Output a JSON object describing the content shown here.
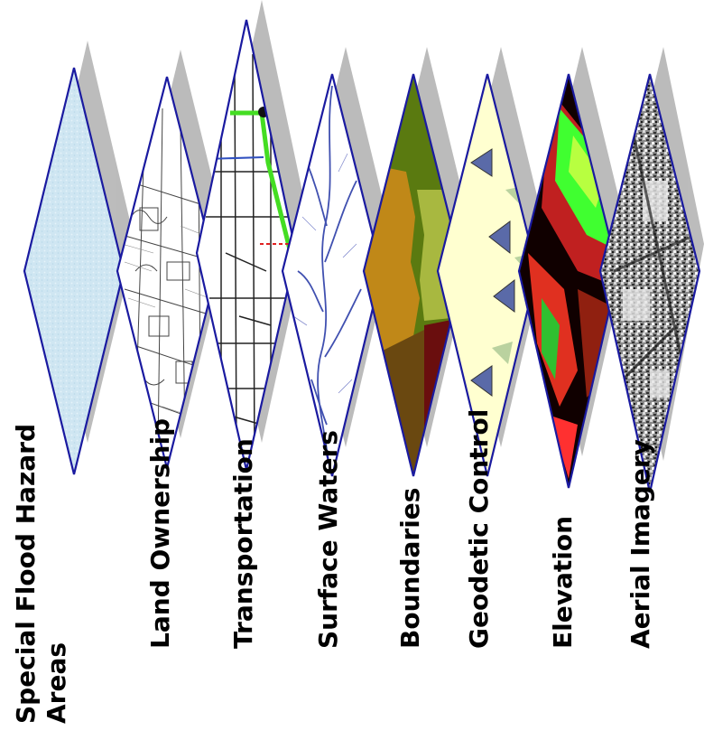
{
  "layers": [
    {
      "id": "flood",
      "label_lines": [
        "Special Flood Hazard",
        "Areas"
      ],
      "pattern": "flood"
    },
    {
      "id": "ownership",
      "label_lines": [
        "Land Ownership"
      ],
      "pattern": "ownership"
    },
    {
      "id": "transport",
      "label_lines": [
        "Transportation"
      ],
      "pattern": "transport"
    },
    {
      "id": "water",
      "label_lines": [
        "Surface Waters"
      ],
      "pattern": "water"
    },
    {
      "id": "bound",
      "label_lines": [
        "Boundaries"
      ],
      "pattern": "bound"
    },
    {
      "id": "geodetic",
      "label_lines": [
        "Geodetic Control"
      ],
      "pattern": "geodetic"
    },
    {
      "id": "elev",
      "label_lines": [
        "Elevation"
      ],
      "pattern": "elev"
    },
    {
      "id": "aerial",
      "label_lines": [
        "Aerial Imagery"
      ],
      "pattern": "aerial"
    }
  ],
  "colors": {
    "outline": "#1a1aa0",
    "shadow": "#b0b0b0",
    "flood": "#cfe6f2",
    "geodetic_fill": "#ffffd0",
    "triangle": "#5a6aa8"
  }
}
